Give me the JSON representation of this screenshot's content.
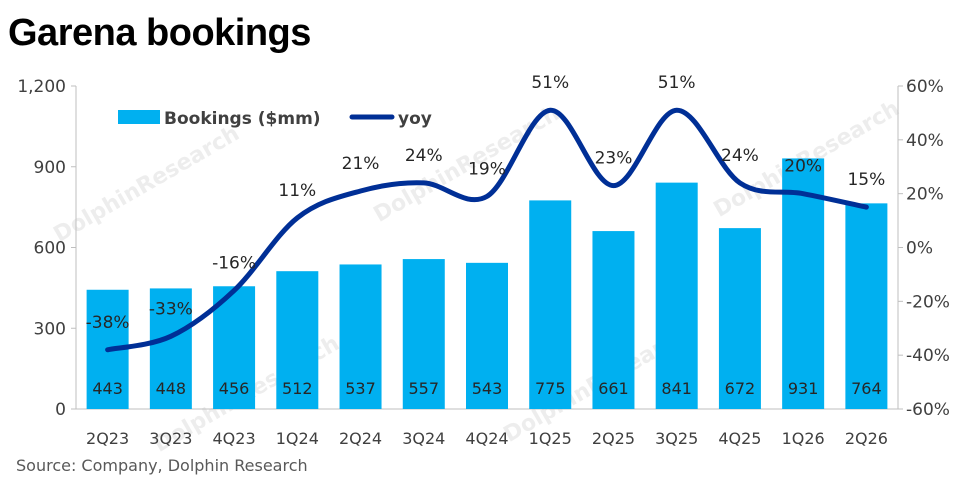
{
  "chart_data": {
    "type": "bar+line",
    "title": "Garena bookings",
    "source": "Source: Company, Dolphin Research",
    "watermark": "DolphinResearch",
    "categories": [
      "2Q23",
      "3Q23",
      "4Q23",
      "1Q24",
      "2Q24",
      "3Q24",
      "4Q24",
      "1Q25",
      "2Q25",
      "3Q25",
      "4Q25",
      "1Q26",
      "2Q26"
    ],
    "series": [
      {
        "name": "Bookings ($mm)",
        "type": "bar",
        "axis": "left",
        "color": "#00b0f0",
        "values": [
          443,
          448,
          456,
          512,
          537,
          557,
          543,
          775,
          661,
          841,
          672,
          931,
          764
        ],
        "labels": [
          "443",
          "448",
          "456",
          "512",
          "537",
          "557",
          "543",
          "775",
          "661",
          "841",
          "672",
          "931",
          "764"
        ]
      },
      {
        "name": "yoy",
        "type": "line",
        "axis": "right",
        "color": "#002f96",
        "values": [
          -38,
          -33,
          -16,
          11,
          21,
          24,
          19,
          51,
          23,
          51,
          24,
          20,
          15
        ],
        "labels": [
          "-38%",
          "-33%",
          "-16%",
          "11%",
          "21%",
          "24%",
          "19%",
          "51%",
          "23%",
          "51%",
          "24%",
          "20%",
          "15%"
        ]
      }
    ],
    "y_left": {
      "min": 0,
      "max": 1200,
      "ticks": [
        "0",
        "300",
        "600",
        "900",
        "1,200"
      ],
      "tick_values": [
        0,
        300,
        600,
        900,
        1200
      ]
    },
    "y_right": {
      "min": -60,
      "max": 60,
      "ticks": [
        "-60%",
        "-40%",
        "-20%",
        "0%",
        "20%",
        "40%",
        "60%"
      ],
      "tick_values": [
        -60,
        -40,
        -20,
        0,
        20,
        40,
        60
      ]
    },
    "legend": {
      "position": "top-left",
      "entries": [
        "Bookings ($mm)",
        "yoy"
      ]
    },
    "grid": false
  }
}
